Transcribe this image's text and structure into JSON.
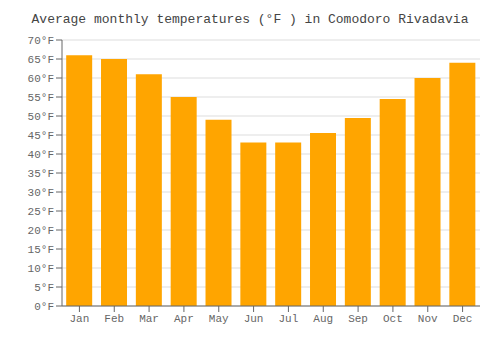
{
  "chart_data": {
    "type": "bar",
    "title": "Average monthly temperatures (°F ) in Comodoro Rivadavia",
    "categories": [
      "Jan",
      "Feb",
      "Mar",
      "Apr",
      "May",
      "Jun",
      "Jul",
      "Aug",
      "Sep",
      "Oct",
      "Nov",
      "Dec"
    ],
    "values": [
      66,
      65,
      61,
      55,
      49,
      43,
      43,
      45.5,
      49.5,
      54.5,
      60,
      64
    ],
    "color": "#FFA500",
    "ylim": [
      0,
      70
    ],
    "yticks": [
      {
        "value": 0,
        "label": "0°F"
      },
      {
        "value": 5,
        "label": "5°F"
      },
      {
        "value": 10,
        "label": "10°F"
      },
      {
        "value": 15,
        "label": "15°F"
      },
      {
        "value": 20,
        "label": "20°F"
      },
      {
        "value": 25,
        "label": "25°F"
      },
      {
        "value": 30,
        "label": "30°F"
      },
      {
        "value": 35,
        "label": "35°F"
      },
      {
        "value": 40,
        "label": "40°F"
      },
      {
        "value": 45,
        "label": "45°F"
      },
      {
        "value": 50,
        "label": "50°F"
      },
      {
        "value": 55,
        "label": "55°F"
      },
      {
        "value": 60,
        "label": "60°F"
      },
      {
        "value": 65,
        "label": "65°F"
      },
      {
        "value": 70,
        "label": "70°F"
      }
    ],
    "grid": true
  }
}
